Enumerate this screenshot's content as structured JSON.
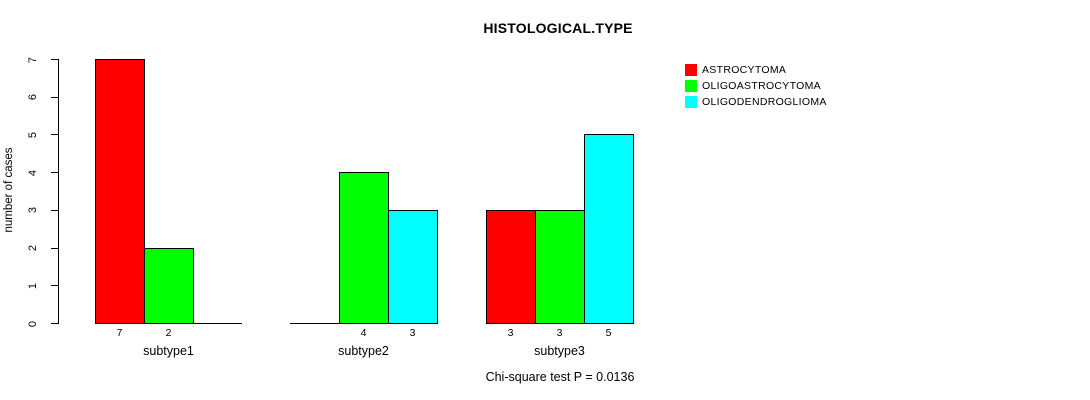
{
  "chart": {
    "title": "HISTOLOGICAL.TYPE",
    "ylabel": "number of cases",
    "footnote": "Chi-square test P = 0.0136"
  },
  "chart_data": {
    "type": "bar",
    "title": "HISTOLOGICAL.TYPE",
    "xlabel": "",
    "ylabel": "number of cases",
    "ylim": [
      0,
      7
    ],
    "yticks": [
      0,
      1,
      2,
      3,
      4,
      5,
      6,
      7
    ],
    "grid": false,
    "legend_position": "top-right",
    "categories": [
      "subtype1",
      "subtype2",
      "subtype3"
    ],
    "series": [
      {
        "name": "ASTROCYTOMA",
        "color": "#ff0000",
        "values": [
          7,
          0,
          3
        ]
      },
      {
        "name": "OLIGOASTROCYTOMA",
        "color": "#00ff00",
        "values": [
          2,
          4,
          3
        ]
      },
      {
        "name": "OLIGODENDROGLIOMA",
        "color": "#00ffff",
        "values": [
          0,
          3,
          5
        ]
      }
    ],
    "bar_value_labels_shown": true,
    "annotation": "Chi-square test P = 0.0136"
  }
}
